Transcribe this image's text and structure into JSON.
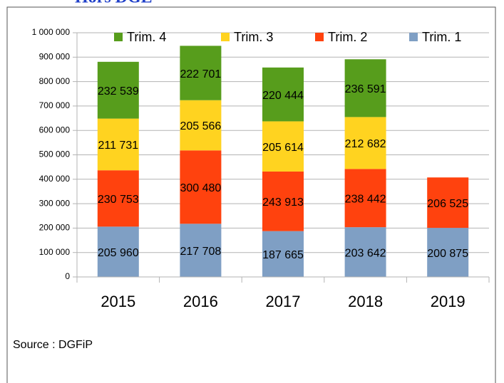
{
  "chart_data": {
    "type": "stacked-bar",
    "title": "Hors DGE",
    "categories": [
      "2015",
      "2016",
      "2017",
      "2018",
      "2019"
    ],
    "series": [
      {
        "name": "Trim. 1",
        "color": "#7f9fc4",
        "values": [
          205960,
          217708,
          187665,
          203642,
          200875
        ],
        "value_labels": [
          "205 960",
          "217 708",
          "187 665",
          "203 642",
          "200 875"
        ]
      },
      {
        "name": "Trim. 2",
        "color": "#ff420e",
        "values": [
          230753,
          300480,
          243913,
          238442,
          206525
        ],
        "value_labels": [
          "230 753",
          "300 480",
          "243 913",
          "238 442",
          "206 525"
        ]
      },
      {
        "name": "Trim. 3",
        "color": "#ffd320",
        "values": [
          211731,
          205566,
          205614,
          212682,
          null
        ],
        "value_labels": [
          "211 731",
          "205 566",
          "205 614",
          "212 682",
          null
        ]
      },
      {
        "name": "Trim. 4",
        "color": "#579d1c",
        "values": [
          232539,
          222701,
          220444,
          236591,
          null
        ],
        "value_labels": [
          "232 539",
          "222 701",
          "220 444",
          "236 591",
          null
        ]
      }
    ],
    "ylim": [
      0,
      1000000
    ],
    "yticks": [
      0,
      {
        "value": 100000,
        "label": "100 000"
      },
      {
        "value": 200000,
        "label": "200 000"
      },
      {
        "value": 300000,
        "label": "300 000"
      },
      {
        "value": 400000,
        "label": "400 000"
      },
      {
        "value": 500000,
        "label": "500 000"
      },
      {
        "value": 600000,
        "label": "600 000"
      },
      {
        "value": 700000,
        "label": "700 000"
      },
      {
        "value": 800000,
        "label": "800 000"
      },
      {
        "value": 900000,
        "label": "900 000"
      },
      {
        "value": 1000000,
        "label": "1 000 000"
      }
    ],
    "grid": true,
    "legend": "top",
    "source": "Source : DGFiP"
  }
}
